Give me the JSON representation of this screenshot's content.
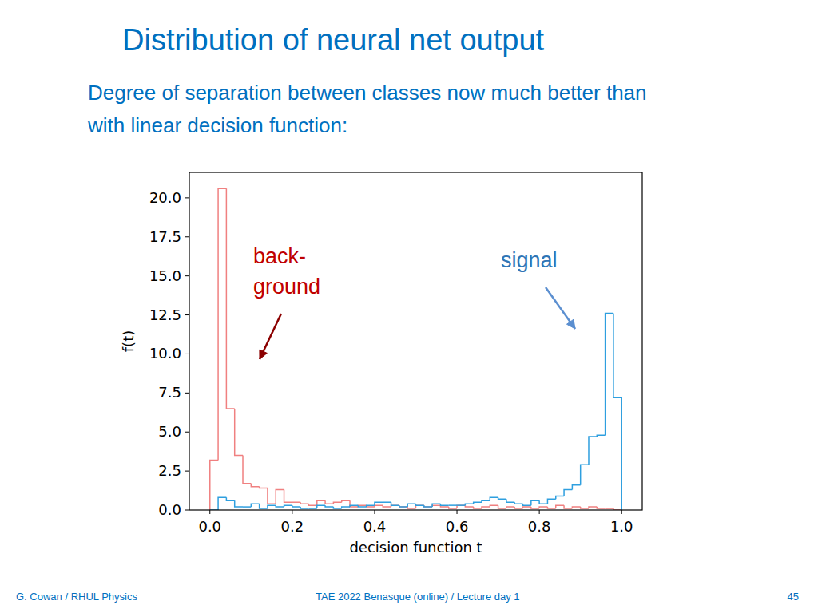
{
  "slide": {
    "title": "Distribution of neural net output",
    "subtitle": [
      "Degree of separation between classes now much better than",
      "with linear decision function:"
    ],
    "footer": {
      "left": "G. Cowan / RHUL Physics",
      "center": "TAE 2022 Benasque (online) / Lecture day 1",
      "right": "45"
    }
  },
  "chart_data": {
    "type": "histogram",
    "x_label": "decision function t",
    "y_label": "f(t)",
    "annotations": [
      {
        "lines": [
          "back-",
          "ground"
        ]
      },
      {
        "lines": [
          "signal"
        ]
      }
    ],
    "bins": [
      0,
      0.02,
      0.04,
      0.06,
      0.08,
      0.1,
      0.12,
      0.14,
      0.16,
      0.18,
      0.2,
      0.22,
      0.24,
      0.26,
      0.28,
      0.3,
      0.32,
      0.34,
      0.36,
      0.38,
      0.4,
      0.42,
      0.44,
      0.46,
      0.48,
      0.5,
      0.52,
      0.54,
      0.56,
      0.58,
      0.6,
      0.62,
      0.64,
      0.66,
      0.68,
      0.7,
      0.72,
      0.74,
      0.76,
      0.78,
      0.8,
      0.82,
      0.84,
      0.86,
      0.88,
      0.9,
      0.92,
      0.94,
      0.96,
      0.98,
      1
    ],
    "series": [
      {
        "color": "#f08080",
        "line_style": "step",
        "values": [
          3.2,
          20.6,
          6.5,
          3.5,
          1.7,
          1.5,
          1.4,
          0.4,
          1.3,
          0.5,
          0.5,
          0.4,
          0.3,
          0.6,
          0.4,
          0.5,
          0.6,
          0.2,
          0.3,
          0.2,
          0.3,
          0.2,
          0.3,
          0.2,
          0.1,
          0.3,
          0.2,
          0.3,
          0.2,
          0.1,
          0.3,
          0.2,
          0.1,
          0.2,
          0.3,
          0.1,
          0.2,
          0.1,
          0.2,
          0.1,
          0.2,
          0.1,
          0.3,
          0.1,
          0.2,
          0.1,
          0.2,
          0.1,
          0.1,
          0
        ]
      },
      {
        "color": "#2e9fdf",
        "line_style": "step",
        "values": [
          0,
          0.8,
          0.6,
          0.2,
          0.2,
          0.4,
          0.1,
          0.3,
          0.2,
          0.3,
          0.2,
          0.1,
          0.1,
          0.3,
          0.2,
          0.1,
          0.2,
          0.3,
          0.2,
          0.3,
          0.5,
          0.5,
          0.3,
          0.2,
          0.4,
          0.3,
          0.2,
          0.4,
          0.3,
          0.3,
          0.3,
          0.4,
          0.5,
          0.6,
          0.8,
          0.7,
          0.5,
          0.4,
          0.3,
          0.6,
          0.4,
          0.7,
          0.9,
          1.3,
          1.6,
          2.9,
          4.7,
          4.8,
          12.6,
          7.2
        ]
      }
    ],
    "xlim": [
      -0.05,
      1.05
    ],
    "xticks": [
      {
        "value": 0,
        "label": "0.0"
      },
      {
        "value": 0.2,
        "label": "0.2"
      },
      {
        "value": 0.4,
        "label": "0.4"
      },
      {
        "value": 0.6,
        "label": "0.6"
      },
      {
        "value": 0.8,
        "label": "0.8"
      },
      {
        "value": 1,
        "label": "1.0"
      }
    ],
    "ylim": [
      0,
      21.63
    ],
    "yticks": [
      {
        "value": 0,
        "label": "0.0"
      },
      {
        "value": 2.5,
        "label": "2.5"
      },
      {
        "value": 5,
        "label": "5.0"
      },
      {
        "value": 7.5,
        "label": "7.5"
      },
      {
        "value": 10,
        "label": "10.0"
      },
      {
        "value": 12.5,
        "label": "12.5"
      },
      {
        "value": 15,
        "label": "15.0"
      },
      {
        "value": 17.5,
        "label": "17.5"
      },
      {
        "value": 20,
        "label": "20.0"
      }
    ],
    "grid": false
  }
}
